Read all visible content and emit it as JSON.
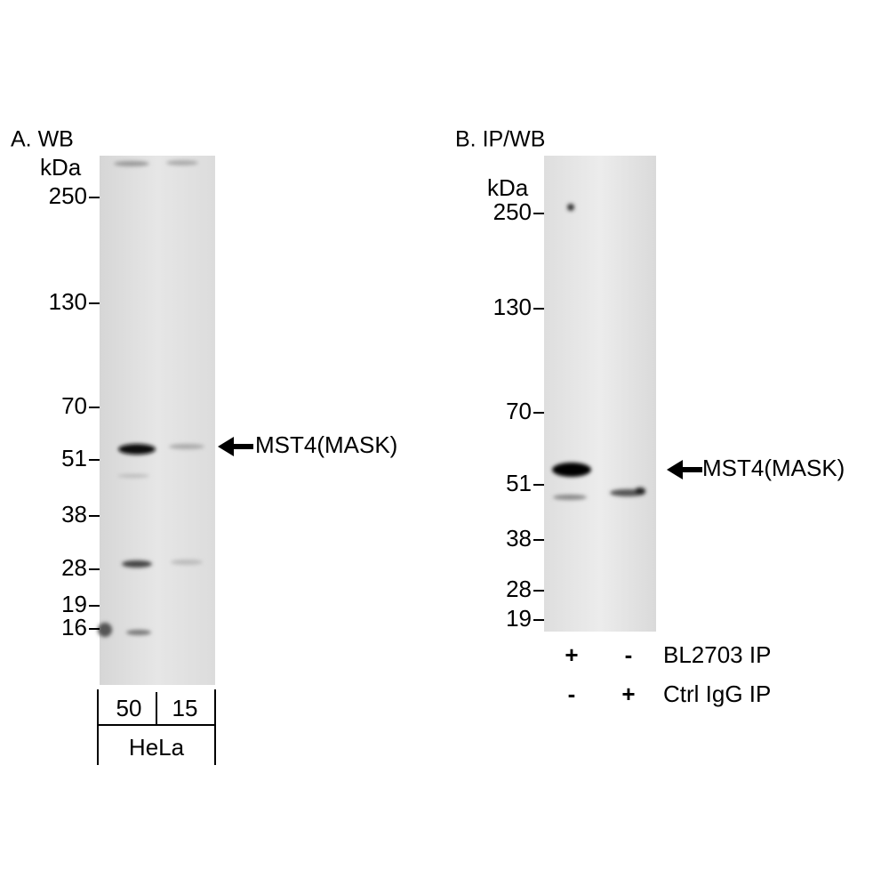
{
  "panels": [
    {
      "title": "A. WB",
      "unit": "kDa",
      "markers": [
        250,
        130,
        70,
        51,
        38,
        28,
        19,
        16
      ],
      "target": "MST4(MASK)",
      "lanes": [
        "50",
        "15"
      ],
      "sample": "HeLa"
    },
    {
      "title": "B. IP/WB",
      "unit": "kDa",
      "markers": [
        250,
        130,
        70,
        51,
        38,
        28,
        19
      ],
      "target": "MST4(MASK)",
      "rows": [
        {
          "label": "BL2703 IP",
          "lanes": [
            "+",
            "-"
          ]
        },
        {
          "label": "Ctrl IgG IP",
          "lanes": [
            "-",
            "+"
          ]
        }
      ]
    }
  ]
}
